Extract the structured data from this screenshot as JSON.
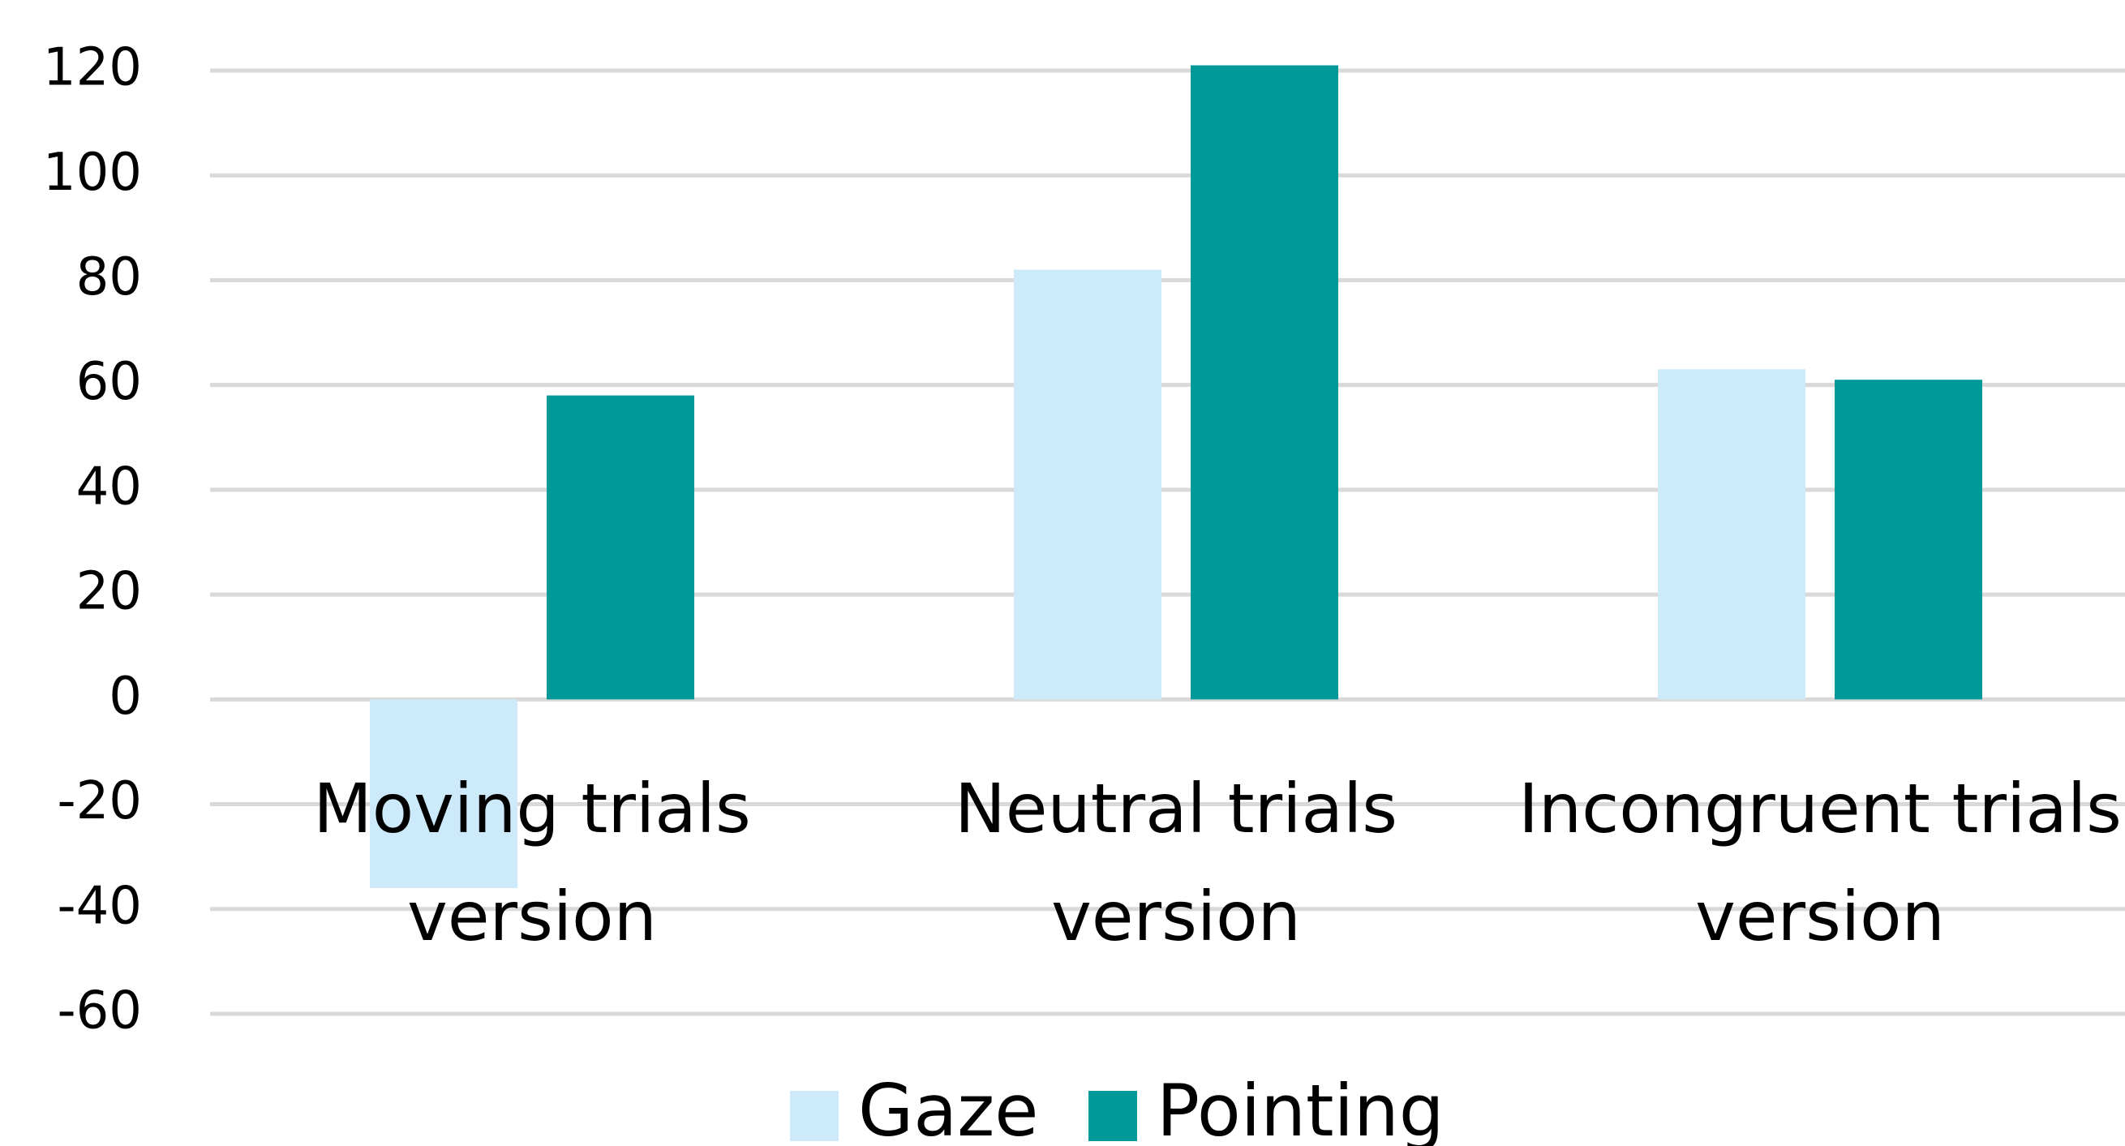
{
  "chart_data": {
    "type": "bar",
    "categories": [
      "Moving trials version",
      "Neutral trials version",
      "Incongruent trials version"
    ],
    "series": [
      {
        "name": "Gaze",
        "color": "#cdeafb",
        "values": [
          -36,
          82,
          63
        ]
      },
      {
        "name": "Pointing",
        "color": "#009999",
        "values": [
          58,
          121,
          61
        ]
      }
    ],
    "ylim": [
      -60,
      120
    ],
    "yticks": [
      -60,
      -40,
      -20,
      0,
      20,
      40,
      60,
      80,
      100,
      120
    ],
    "grid": true,
    "legend": "bottom"
  }
}
